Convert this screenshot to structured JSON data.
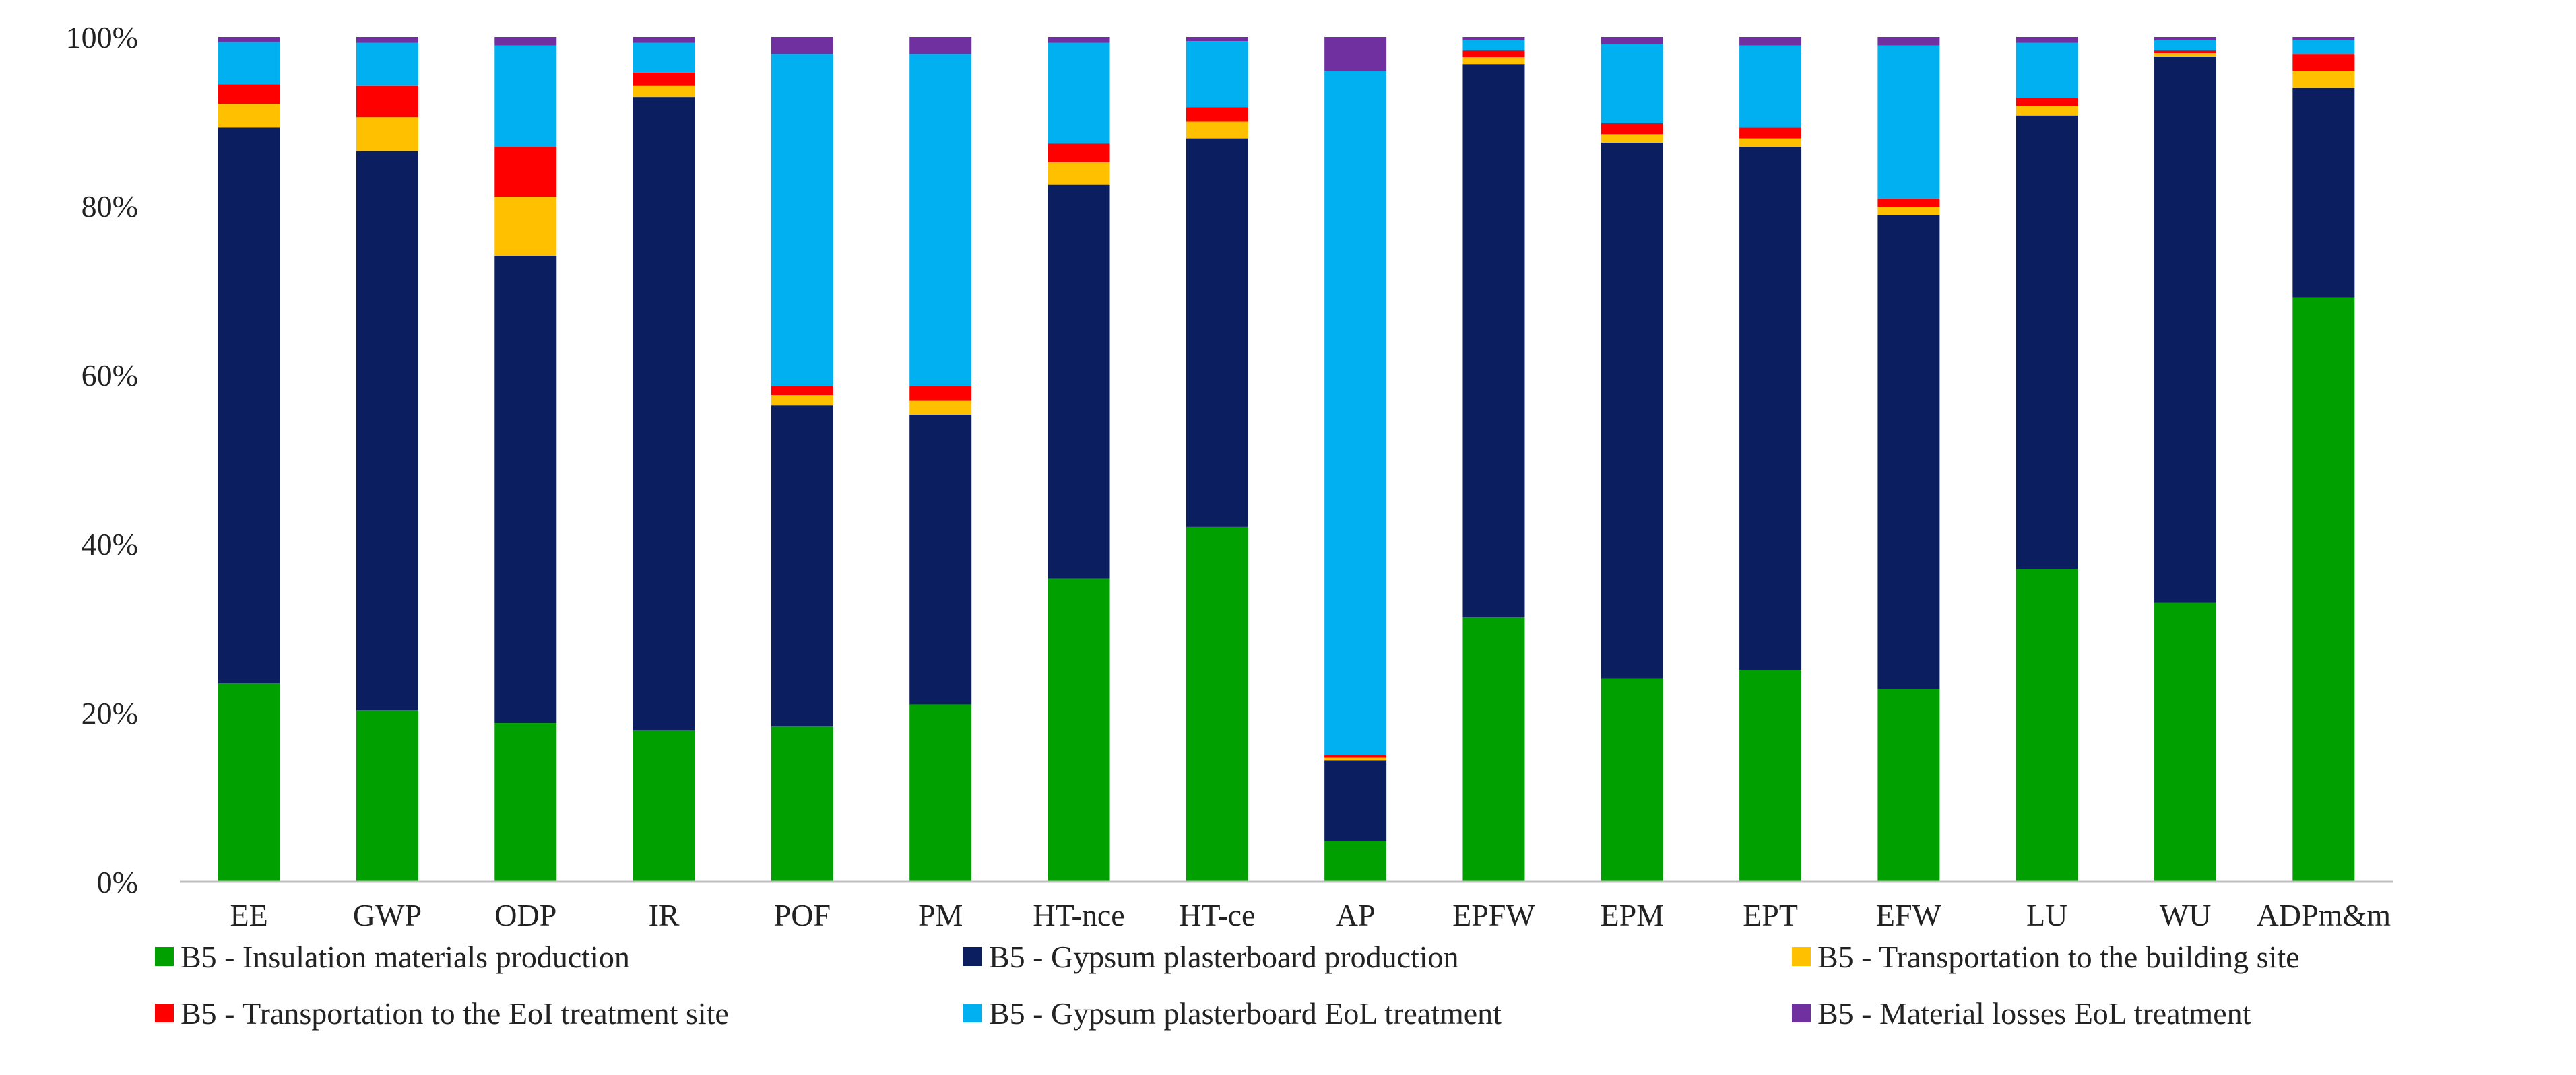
{
  "chart_data": {
    "type": "bar",
    "stacked": true,
    "percent": true,
    "title": "",
    "xlabel": "",
    "ylabel": "",
    "ylim": [
      0,
      100
    ],
    "yticks": [
      "0%",
      "20%",
      "40%",
      "60%",
      "80%",
      "100%"
    ],
    "grid": false,
    "legend_position": "bottom",
    "categories": [
      "EE",
      "GWP",
      "ODP",
      "IR",
      "POF",
      "PM",
      "HT-nce",
      "HT-ce",
      "AP",
      "EPFW",
      "EPM",
      "EPT",
      "EFW",
      "LU",
      "WU",
      "ADPm&m"
    ],
    "series": [
      {
        "name": "B5 - Insulation materials production",
        "color": "#00a000",
        "values": [
          23.5,
          20.3,
          18.8,
          17.9,
          18.4,
          21.0,
          35.9,
          42.0,
          4.8,
          31.3,
          24.1,
          25.1,
          22.8,
          37.0,
          33.0,
          69.2
        ]
      },
      {
        "name": "B5 - Gypsum plasterboard production",
        "color": "#0b1f60",
        "values": [
          65.8,
          66.2,
          55.3,
          75.0,
          38.0,
          34.3,
          46.6,
          46.0,
          9.6,
          65.5,
          63.4,
          61.9,
          56.1,
          53.7,
          64.7,
          24.8
        ]
      },
      {
        "name": "B5 - Transportation to the building site",
        "color": "#ffc000",
        "values": [
          2.8,
          4.0,
          7.0,
          1.3,
          1.2,
          1.7,
          2.7,
          2.0,
          0.3,
          0.8,
          1.0,
          1.0,
          1.0,
          1.1,
          0.4,
          2.0
        ]
      },
      {
        "name": "B5 - Transportation to the EoI treatment site",
        "color": "#ff0000",
        "values": [
          2.3,
          3.7,
          5.9,
          1.6,
          1.1,
          1.7,
          2.2,
          1.7,
          0.3,
          0.8,
          1.3,
          1.3,
          1.0,
          1.0,
          0.3,
          2.0
        ]
      },
      {
        "name": "B5 - Gypsum plasterboard EoL treatment",
        "color": "#00b0f0",
        "values": [
          5.0,
          5.1,
          12.0,
          3.5,
          39.3,
          39.3,
          11.9,
          7.8,
          81.0,
          1.2,
          9.4,
          9.7,
          18.1,
          6.5,
          1.2,
          1.6
        ]
      },
      {
        "name": "B5 - Material losses EoL treatment",
        "color": "#7030a0",
        "values": [
          0.6,
          0.7,
          1.0,
          0.7,
          2.0,
          2.0,
          0.7,
          0.5,
          4.0,
          0.4,
          0.8,
          1.0,
          1.0,
          0.7,
          0.4,
          0.4
        ]
      }
    ]
  }
}
